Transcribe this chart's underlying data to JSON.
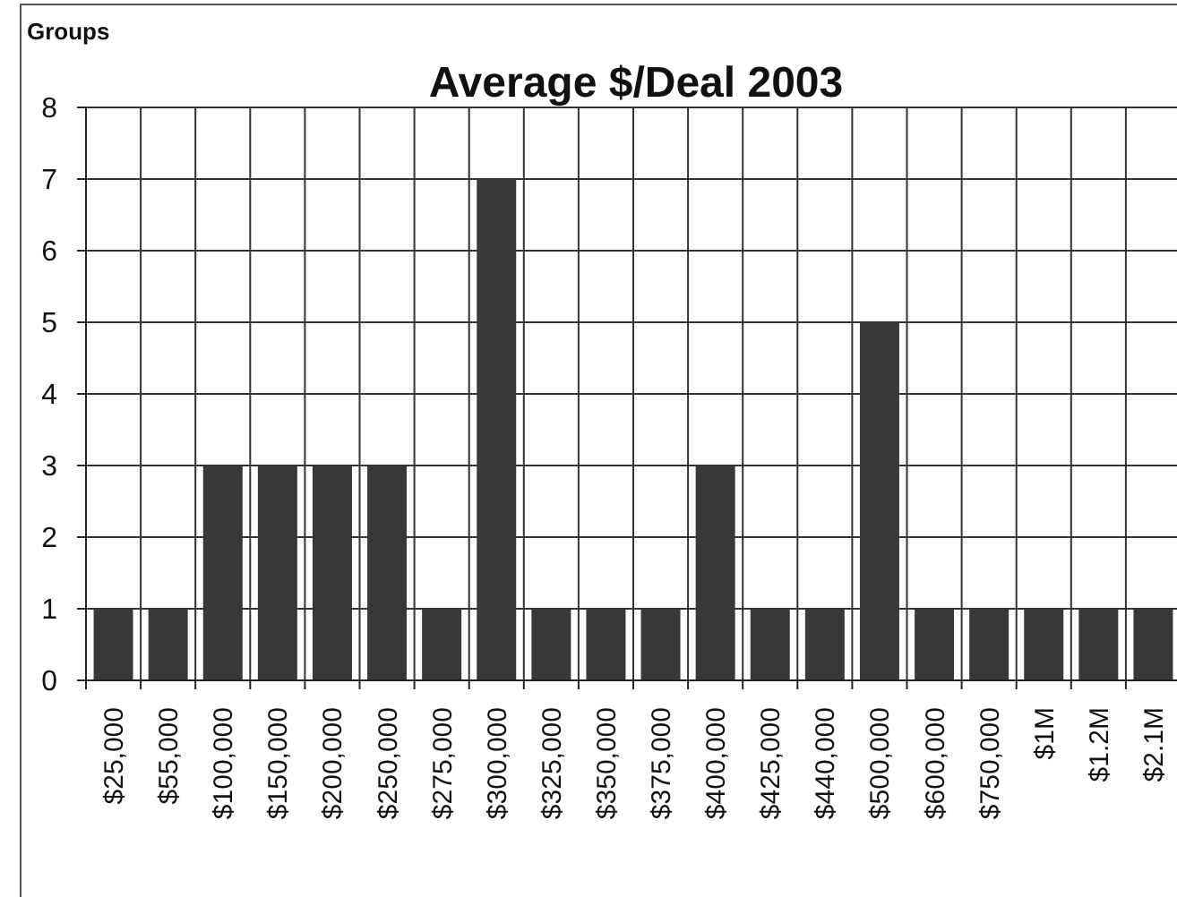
{
  "chart_data": {
    "type": "bar",
    "title": "Average $/Deal 2003",
    "ylabel": "Groups",
    "categories": [
      "$25,000",
      "$55,000",
      "$100,000",
      "$150,000",
      "$200,000",
      "$250,000",
      "$275,000",
      "$300,000",
      "$325,000",
      "$350,000",
      "$375,000",
      "$400,000",
      "$425,000",
      "$440,000",
      "$500,000",
      "$600,000",
      "$750,000",
      "$1M",
      "$1.2M",
      "$2.1M"
    ],
    "values": [
      1,
      1,
      3,
      3,
      3,
      3,
      1,
      7,
      1,
      1,
      1,
      3,
      1,
      1,
      5,
      1,
      1,
      1,
      1,
      1
    ],
    "color": "#383838",
    "ylim": [
      0,
      8
    ],
    "yticks": [
      0,
      1,
      2,
      3,
      4,
      5,
      6,
      7,
      8
    ],
    "grid": true
  }
}
